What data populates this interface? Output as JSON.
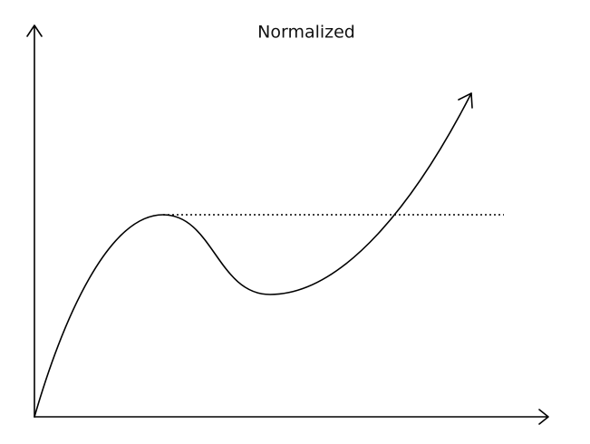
{
  "title": "Normalized"
}
